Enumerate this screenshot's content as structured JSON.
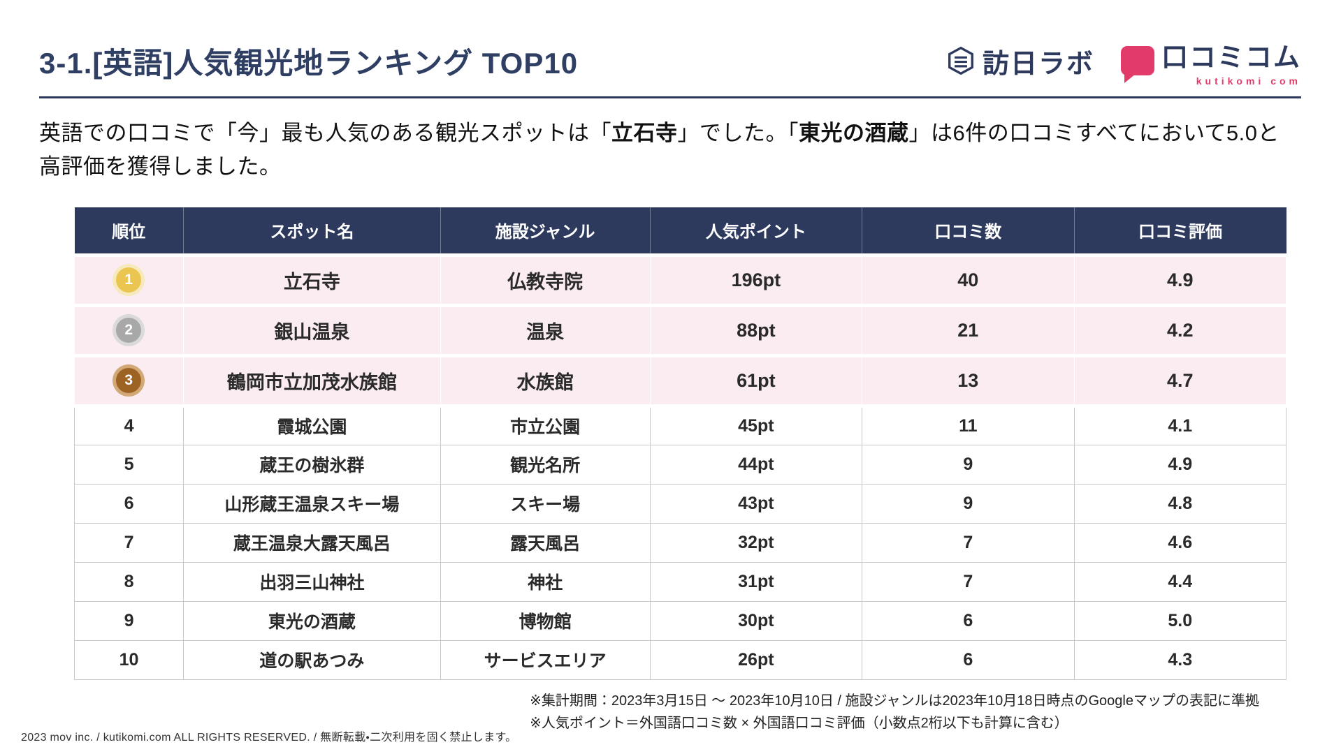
{
  "header": {
    "title": "3-1.[英語]人気観光地ランキング TOP10",
    "logo_houjitsulab": "訪日ラボ",
    "logo_kutikomi": "口コミコム",
    "logo_kutikomi_sub": "kutikomi com"
  },
  "description": {
    "segments": [
      {
        "text": "英語での口コミで「今」最も人気のある観光スポットは「",
        "bold": false
      },
      {
        "text": "立石寺",
        "bold": true
      },
      {
        "text": "」でした。「",
        "bold": false
      },
      {
        "text": "東光の酒蔵",
        "bold": true
      },
      {
        "text": "」は6件の口コミすべてにおいて5.0と高評価を獲得しました。",
        "bold": false
      }
    ]
  },
  "table": {
    "headers": [
      "順位",
      "スポット名",
      "施設ジャンル",
      "人気ポイント",
      "口コミ数",
      "口コミ評価"
    ],
    "rows": [
      {
        "rank": "1",
        "spot": "立石寺",
        "genre": "仏教寺院",
        "points": "196pt",
        "reviews": "40",
        "rating": "4.9",
        "highlight": true,
        "medal": "gold"
      },
      {
        "rank": "2",
        "spot": "銀山温泉",
        "genre": "温泉",
        "points": "88pt",
        "reviews": "21",
        "rating": "4.2",
        "highlight": true,
        "medal": "silver"
      },
      {
        "rank": "3",
        "spot": "鶴岡市立加茂水族館",
        "genre": "水族館",
        "points": "61pt",
        "reviews": "13",
        "rating": "4.7",
        "highlight": true,
        "medal": "bronze"
      },
      {
        "rank": "4",
        "spot": "霞城公園",
        "genre": "市立公園",
        "points": "45pt",
        "reviews": "11",
        "rating": "4.1",
        "highlight": false,
        "medal": null
      },
      {
        "rank": "5",
        "spot": "蔵王の樹氷群",
        "genre": "観光名所",
        "points": "44pt",
        "reviews": "9",
        "rating": "4.9",
        "highlight": false,
        "medal": null
      },
      {
        "rank": "6",
        "spot": "山形蔵王温泉スキー場",
        "genre": "スキー場",
        "points": "43pt",
        "reviews": "9",
        "rating": "4.8",
        "highlight": false,
        "medal": null
      },
      {
        "rank": "7",
        "spot": "蔵王温泉大露天風呂",
        "genre": "露天風呂",
        "points": "32pt",
        "reviews": "7",
        "rating": "4.6",
        "highlight": false,
        "medal": null
      },
      {
        "rank": "8",
        "spot": "出羽三山神社",
        "genre": "神社",
        "points": "31pt",
        "reviews": "7",
        "rating": "4.4",
        "highlight": false,
        "medal": null
      },
      {
        "rank": "9",
        "spot": "東光の酒蔵",
        "genre": "博物館",
        "points": "30pt",
        "reviews": "6",
        "rating": "5.0",
        "highlight": false,
        "medal": null
      },
      {
        "rank": "10",
        "spot": "道の駅あつみ",
        "genre": "サービスエリア",
        "points": "26pt",
        "reviews": "6",
        "rating": "4.3",
        "highlight": false,
        "medal": null
      }
    ]
  },
  "footnotes": [
    "※集計期間：2023年3月15日 〜 2023年10月10日 / 施設ジャンルは2023年10月18日時点のGoogleマップの表記に準拠",
    "※人気ポイント＝外国語口コミ数 × 外国語口コミ評価（小数点2桁以下も計算に含む）"
  ],
  "copyright": "2023 mov inc. / kutikomi.com ALL RIGHTS RESERVED. / 無断転載・二次利用を固く禁止します。",
  "colors": {
    "navy": "#2d3a5e",
    "highlight_row": "#fbecf2",
    "kutikomi_pink": "#e23b69",
    "medals": {
      "gold": {
        "bg": "#eac54f",
        "ring": "#f6e9bb"
      },
      "silver": {
        "bg": "#a8a8a8",
        "ring": "#dadada"
      },
      "bronze": {
        "bg": "#9c6323",
        "ring": "#d2a877"
      }
    }
  }
}
